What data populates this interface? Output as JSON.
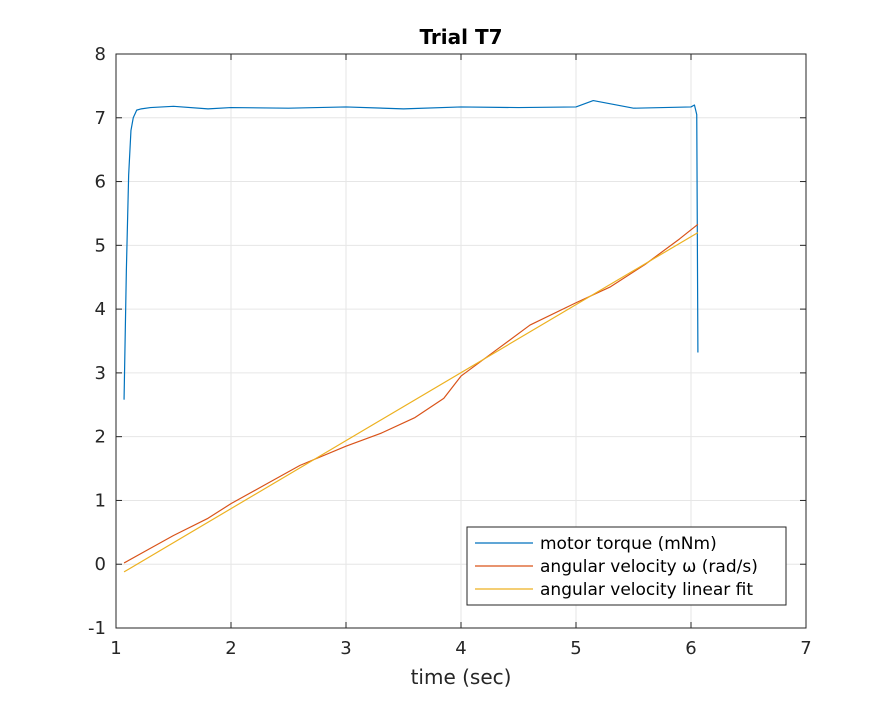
{
  "chart_data": {
    "type": "line",
    "title": "Trial T7",
    "xlabel": "time (sec)",
    "ylabel": "",
    "xlim": [
      1,
      7
    ],
    "ylim": [
      -1,
      8
    ],
    "xticks": [
      "1",
      "2",
      "3",
      "4",
      "5",
      "6",
      "7"
    ],
    "yticks": [
      "-1",
      "0",
      "1",
      "2",
      "3",
      "4",
      "5",
      "6",
      "7",
      "8"
    ],
    "grid": true,
    "legend_position": "bottom-right",
    "series": [
      {
        "name": "motor torque (mNm)",
        "color": "#0072BD",
        "x": [
          1.07,
          1.09,
          1.11,
          1.13,
          1.15,
          1.18,
          1.22,
          1.3,
          1.5,
          1.8,
          2.0,
          2.5,
          3.0,
          3.5,
          4.0,
          4.5,
          5.0,
          5.15,
          5.5,
          6.0,
          6.03,
          6.05,
          6.055,
          6.06
        ],
        "y": [
          2.58,
          4.6,
          6.1,
          6.8,
          7.0,
          7.12,
          7.14,
          7.16,
          7.18,
          7.14,
          7.16,
          7.15,
          7.17,
          7.14,
          7.17,
          7.16,
          7.17,
          7.27,
          7.15,
          7.17,
          7.2,
          7.05,
          5.2,
          3.32
        ]
      },
      {
        "name": "angular velocity ω (rad/s)",
        "color": "#D95319",
        "x": [
          1.07,
          1.3,
          1.5,
          1.8,
          2.0,
          2.3,
          2.6,
          3.0,
          3.3,
          3.6,
          3.85,
          4.0,
          4.3,
          4.6,
          5.0,
          5.3,
          5.6,
          5.9,
          6.06
        ],
        "y": [
          0.02,
          0.25,
          0.45,
          0.72,
          0.95,
          1.25,
          1.55,
          1.85,
          2.05,
          2.3,
          2.6,
          2.95,
          3.35,
          3.75,
          4.1,
          4.35,
          4.7,
          5.1,
          5.33
        ]
      },
      {
        "name": "angular velocity linear fit",
        "color": "#EDB120",
        "x": [
          1.07,
          6.06
        ],
        "y": [
          -0.12,
          5.2
        ]
      }
    ]
  }
}
